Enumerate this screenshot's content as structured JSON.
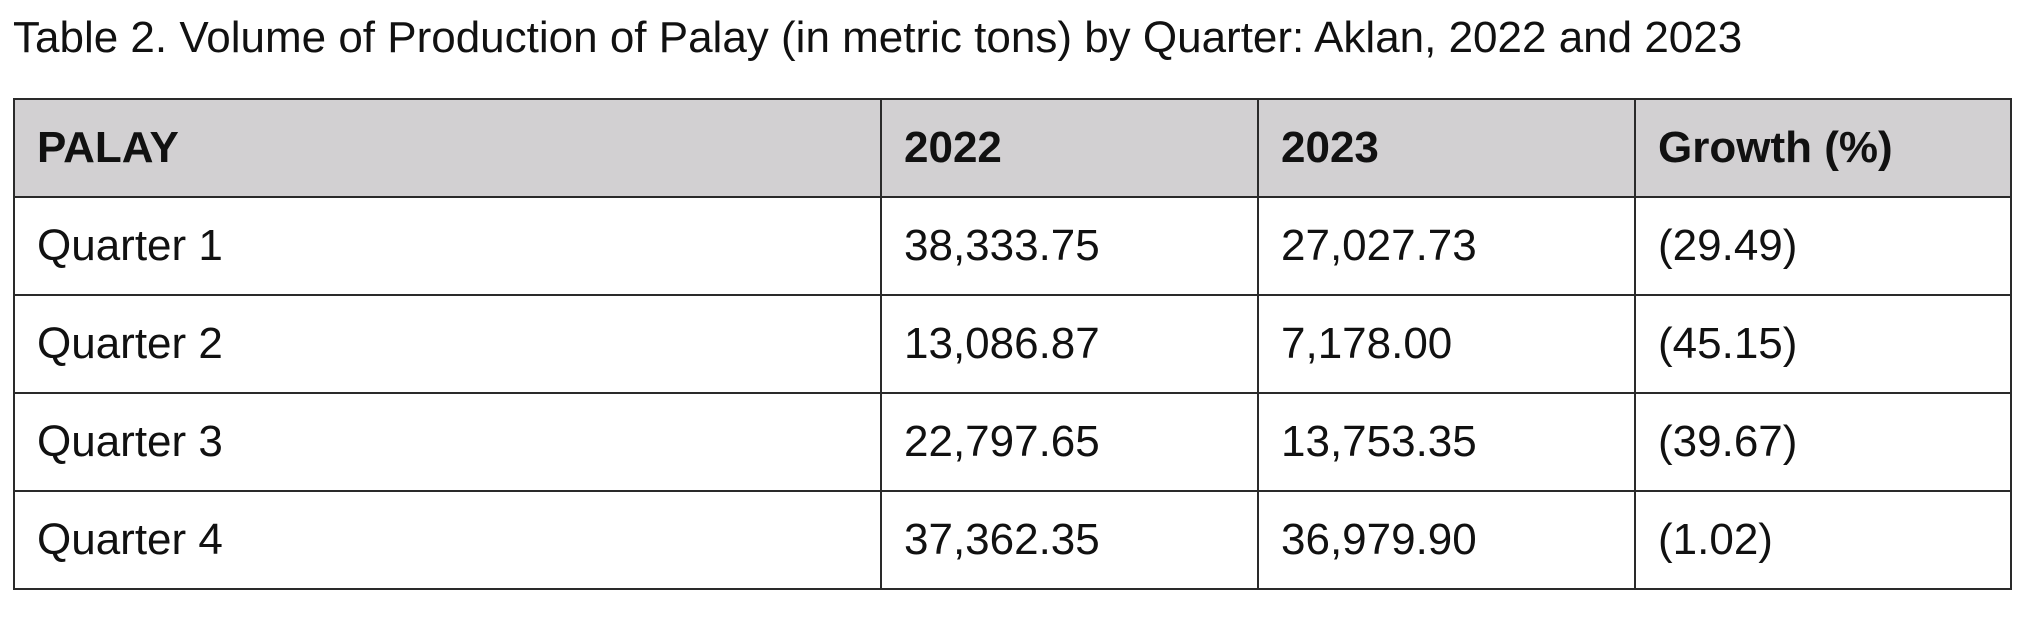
{
  "caption": "Table 2. Volume of Production of Palay (in metric tons) by Quarter: Aklan, 2022 and 2023",
  "table": {
    "headers": [
      "PALAY",
      "2022",
      "2023",
      "Growth (%)"
    ],
    "rows": [
      [
        "Quarter 1",
        "38,333.75",
        "27,027.73",
        "(29.49)"
      ],
      [
        "Quarter 2",
        "13,086.87",
        "7,178.00",
        "(45.15)"
      ],
      [
        "Quarter 3",
        "22,797.65",
        "13,753.35",
        "(39.67)"
      ],
      [
        "Quarter 4",
        "37,362.35",
        "36,979.90",
        "(1.02)"
      ]
    ]
  },
  "colors": {
    "header_background": "#d2d0d2",
    "border": "#2a2a2a",
    "text": "#111111"
  }
}
